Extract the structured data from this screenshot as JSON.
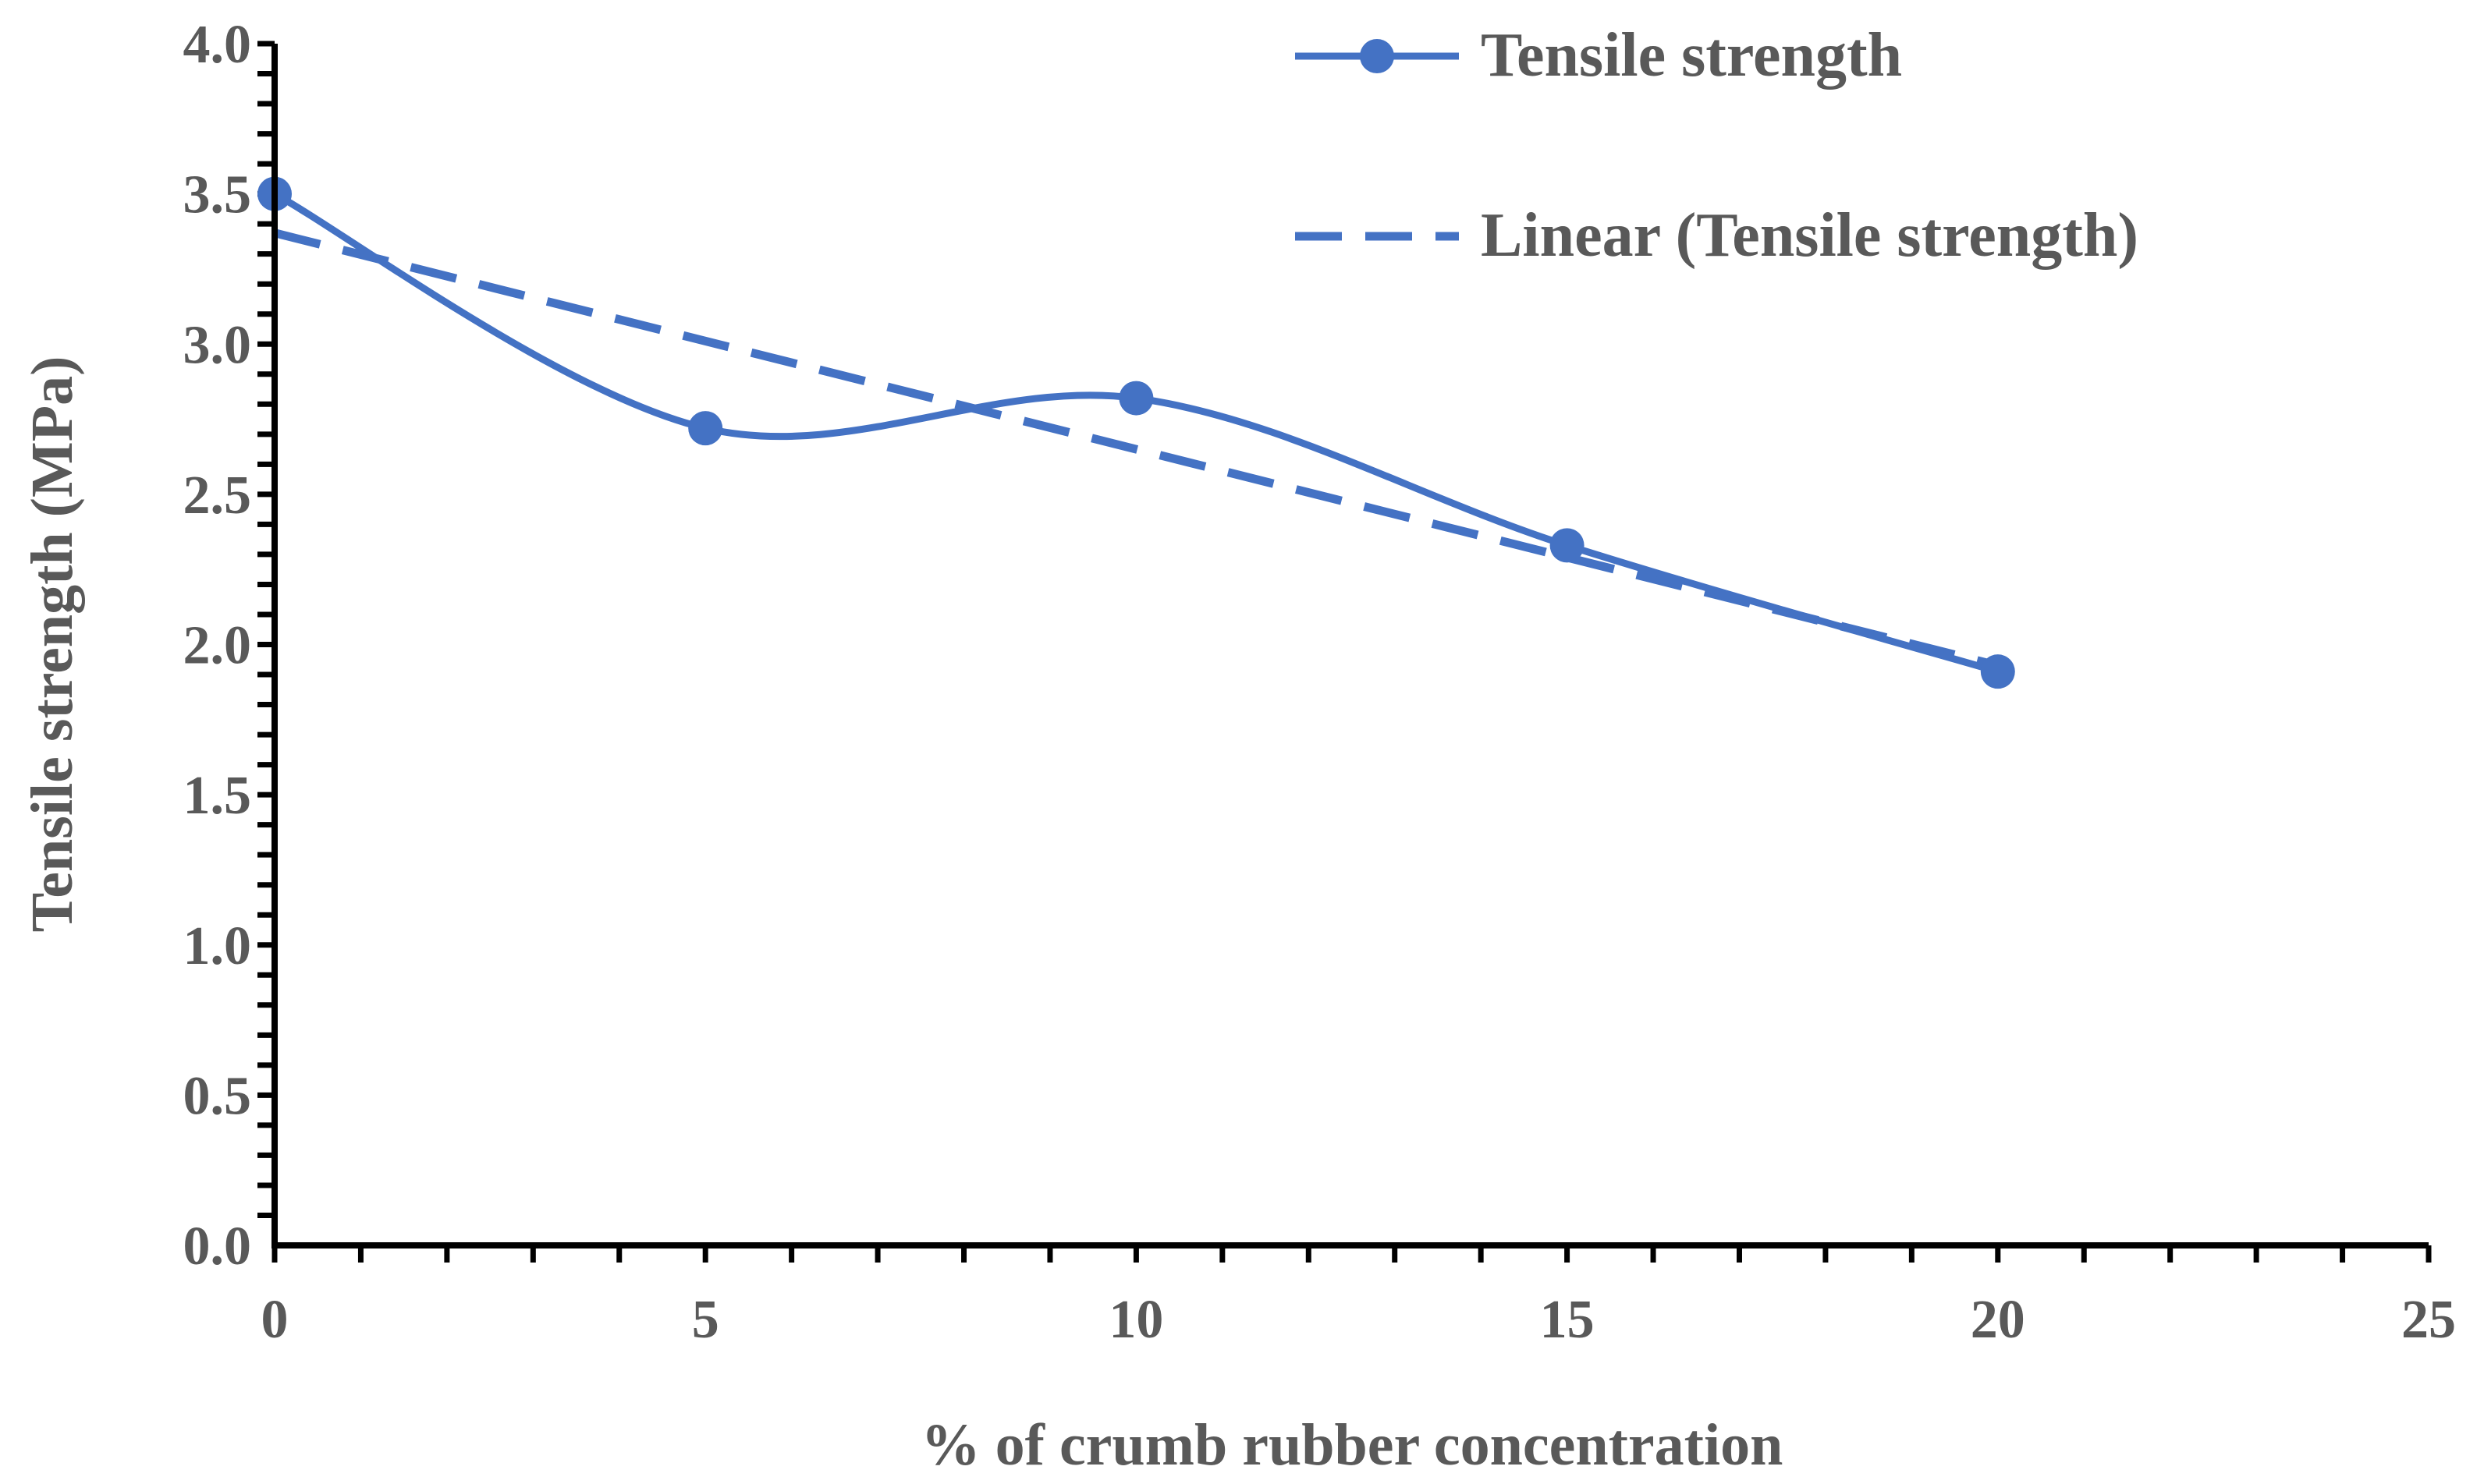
{
  "chart_data": {
    "type": "line",
    "xlabel": "% of crumb rubber concentration",
    "ylabel": "Tensile strength (MPa)",
    "xlim": [
      0,
      25
    ],
    "ylim": [
      0,
      4.0
    ],
    "x_ticks": [
      "0",
      "5",
      "10",
      "15",
      "20",
      "25"
    ],
    "y_ticks": [
      "0.0",
      "0.5",
      "1.0",
      "1.5",
      "2.0",
      "2.5",
      "3.0",
      "3.5",
      "4.0"
    ],
    "x_minor_step": 1,
    "y_minor_step": 0.1,
    "grid": false,
    "legend_position": "top-right",
    "color": "#4472C4",
    "series": [
      {
        "name": "Tensile strength",
        "style": "smooth-line-markers",
        "x": [
          0,
          5,
          10,
          15,
          20
        ],
        "values": [
          3.5,
          2.72,
          2.82,
          2.33,
          1.91
        ]
      }
    ],
    "trendline": {
      "name": "Linear (Tensile strength)",
      "style": "dashed-linear",
      "x": [
        0,
        20
      ],
      "values": [
        3.37,
        1.93
      ]
    }
  }
}
